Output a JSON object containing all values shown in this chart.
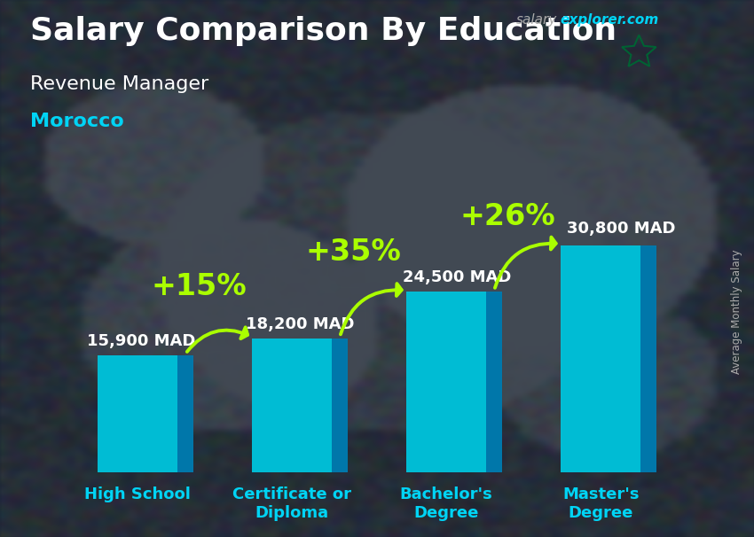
{
  "title": "Salary Comparison By Education",
  "subtitle": "Revenue Manager",
  "country": "Morocco",
  "categories": [
    "High School",
    "Certificate or\nDiploma",
    "Bachelor's\nDegree",
    "Master's\nDegree"
  ],
  "values": [
    15900,
    18200,
    24500,
    30800
  ],
  "labels": [
    "15,900 MAD",
    "18,200 MAD",
    "24,500 MAD",
    "30,800 MAD"
  ],
  "pct_labels": [
    "+15%",
    "+35%",
    "+26%"
  ],
  "bar_color_front": "#00bcd4",
  "bar_color_side": "#0077aa",
  "bar_color_top": "#00e5ff",
  "bar_width": 0.52,
  "bar_depth": 0.1,
  "title_fontsize": 26,
  "subtitle_fontsize": 16,
  "country_fontsize": 16,
  "label_fontsize": 13,
  "cat_fontsize": 13,
  "pct_fontsize": 24,
  "title_color": "#ffffff",
  "subtitle_color": "#ffffff",
  "country_color": "#00d4f5",
  "label_color": "#ffffff",
  "cat_color": "#00d4f5",
  "pct_color": "#aaff00",
  "arrow_color": "#aaff00",
  "bg_color": "#3a4a5a",
  "website_salary_color": "#aaaaaa",
  "website_explorer_color": "#00d4f5",
  "ylabel": "Average Monthly Salary",
  "ylim": [
    0,
    40000
  ],
  "flag_color": "#cc0001",
  "star_color": "#006233"
}
